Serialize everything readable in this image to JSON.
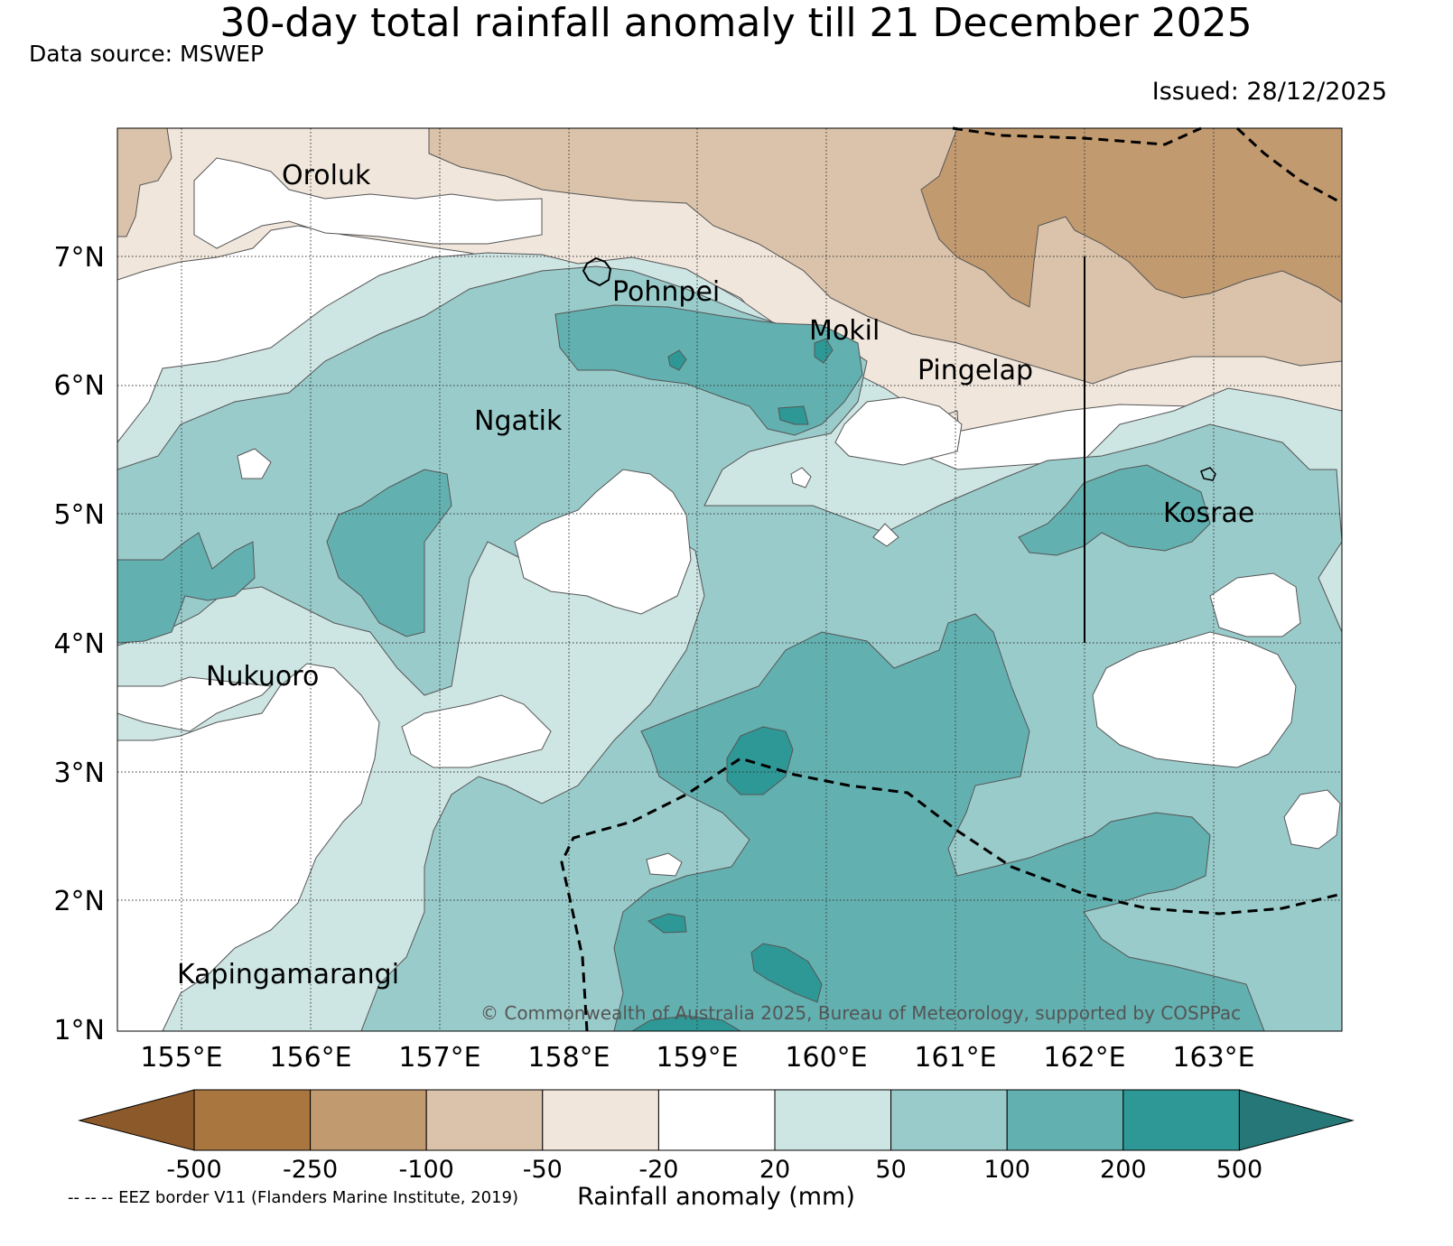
{
  "header": {
    "title": "30-day total rainfall anomaly till 21 December 2025",
    "data_source": "Data source: MSWEP",
    "issued": "Issued: 28/12/2025"
  },
  "map": {
    "latitude_labels": [
      "7°N",
      "6°N",
      "5°N",
      "4°N",
      "3°N",
      "2°N",
      "1°N"
    ],
    "longitude_labels": [
      "155°E",
      "156°E",
      "157°E",
      "158°E",
      "159°E",
      "160°E",
      "161°E",
      "162°E",
      "163°E"
    ],
    "islands": {
      "oroluk": "Oroluk",
      "pohnpei": "Pohnpei",
      "mokil": "Mokil",
      "pingelap": "Pingelap",
      "ngatik": "Ngatik",
      "kosrae": "Kosrae",
      "nukuoro": "Nukuoro",
      "kapingamarangi": "Kapingamarangi"
    },
    "copyright": "© Commonwealth of Australia 2025, Bureau of Meteorology, supported by COSPPac"
  },
  "colorbar": {
    "title": "Rainfall anomaly (mm)",
    "tick_labels": [
      "-500",
      "-250",
      "-100",
      "-50",
      "-20",
      "20",
      "50",
      "100",
      "200",
      "500"
    ],
    "colors": {
      "lt_minus_500": "#8c5a2a",
      "minus_500_to_250": "#a8763e",
      "minus_250_to_100": "#c29a70",
      "minus_100_to_50": "#dac3aa",
      "minus_50_to_20": "#f0e6dc",
      "neutral": "#ffffff",
      "20_to_50": "#cde5e3",
      "50_to_100": "#9acbcb",
      "100_to_200": "#63b0b0",
      "200_to_500": "#2e9896",
      "gt_500": "#267878"
    }
  },
  "footer": {
    "eez_note": "-- -- -- EEZ border V11 (Flanders Marine Institute, 2019)"
  }
}
